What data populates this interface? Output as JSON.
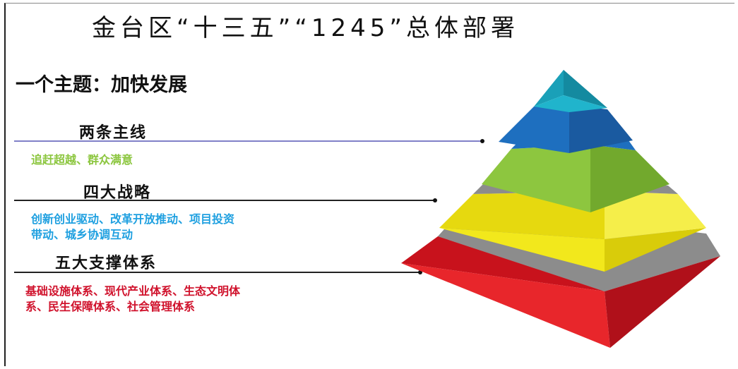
{
  "title": "金台区“十三五”“1245”总体部署",
  "theme": "一个主题：加快发展",
  "levels": [
    {
      "heading": "两条主线",
      "desc_lines": [
        "追赶超越、群众满意"
      ],
      "desc_color": "#8cc63f"
    },
    {
      "heading": "四大战略",
      "desc_lines": [
        "创新创业驱动、改革开放推动、项目投资",
        "带动、城乡协调互动"
      ],
      "desc_color": "#1fa0e0"
    },
    {
      "heading": "五大支撑体系",
      "desc_lines": [
        "基础设施体系、现代产业体系、生态文明体",
        "系、民生保障体系、社会管理体系"
      ],
      "desc_color": "#d0122c"
    }
  ],
  "pyramid_colors": {
    "tier1": "#1aa0b8",
    "tier2": "#1e6fbf",
    "tier3": "#8dc63f",
    "tier4": "#f2e81c",
    "tier5": "#e8262b",
    "separator": "#8c8c8c"
  }
}
